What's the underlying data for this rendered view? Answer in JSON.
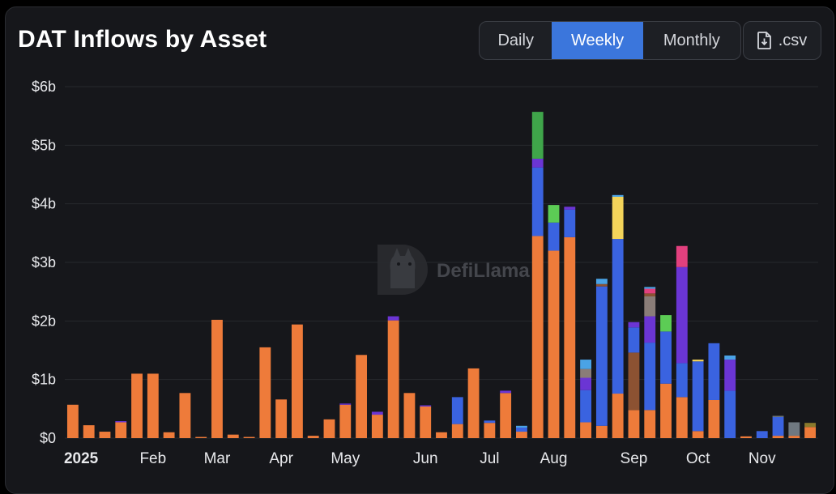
{
  "header": {
    "title": "DAT Inflows by Asset",
    "csv_label": ".csv",
    "icons": {
      "csv": "file-download-icon",
      "watermark": "llama-logo-icon"
    }
  },
  "toggle": {
    "options": [
      {
        "label": "Daily",
        "active": false
      },
      {
        "label": "Weekly",
        "active": true
      },
      {
        "label": "Monthly",
        "active": false
      }
    ]
  },
  "watermark": {
    "text": "DefiLlama"
  },
  "chart_data": {
    "type": "bar",
    "stacked": true,
    "title": "DAT Inflows by Asset",
    "xlabel": "",
    "ylabel": "",
    "ylim": [
      0,
      6
    ],
    "y_unit": "billion USD",
    "y_ticks": [
      "$0",
      "$1b",
      "$2b",
      "$3b",
      "$4b",
      "$5b",
      "$6b"
    ],
    "x_ticks": [
      {
        "label": "2025",
        "index": 0,
        "bold": true
      },
      {
        "label": "Feb",
        "index": 5
      },
      {
        "label": "Mar",
        "index": 9
      },
      {
        "label": "Apr",
        "index": 13
      },
      {
        "label": "May",
        "index": 17
      },
      {
        "label": "Jun",
        "index": 22
      },
      {
        "label": "Jul",
        "index": 26
      },
      {
        "label": "Aug",
        "index": 30
      },
      {
        "label": "Sep",
        "index": 35
      },
      {
        "label": "Oct",
        "index": 39
      },
      {
        "label": "Nov",
        "index": 43
      }
    ],
    "grid": true,
    "legend": "none",
    "colors": {
      "orange": "#ee7b3a",
      "blue": "#3a63e0",
      "purple": "#6b35d4",
      "green": "#3fa54a",
      "yellow": "#f3d45a",
      "brown": "#8c5232",
      "gray": "#8a7d78",
      "pink": "#e2407e",
      "lightblue": "#4aa3e6",
      "lightgreen": "#5ccc55",
      "slate": "#6f7880",
      "olive": "#8a7a2c"
    },
    "weeks": [
      [
        [
          "orange",
          0.57
        ]
      ],
      [
        [
          "orange",
          0.22
        ]
      ],
      [
        [
          "orange",
          0.11
        ]
      ],
      [
        [
          "orange",
          0.27
        ],
        [
          "purple",
          0.02
        ]
      ],
      [
        [
          "orange",
          1.1
        ]
      ],
      [
        [
          "orange",
          1.1
        ]
      ],
      [
        [
          "orange",
          0.1
        ]
      ],
      [
        [
          "orange",
          0.77
        ]
      ],
      [
        [
          "orange",
          0.02
        ]
      ],
      [
        [
          "orange",
          2.02
        ]
      ],
      [
        [
          "orange",
          0.06
        ]
      ],
      [
        [
          "orange",
          0.02
        ]
      ],
      [
        [
          "orange",
          1.55
        ]
      ],
      [
        [
          "orange",
          0.66
        ]
      ],
      [
        [
          "orange",
          1.94
        ]
      ],
      [
        [
          "orange",
          0.04
        ]
      ],
      [
        [
          "orange",
          0.32
        ]
      ],
      [
        [
          "orange",
          0.57
        ],
        [
          "purple",
          0.02
        ]
      ],
      [
        [
          "orange",
          1.42
        ]
      ],
      [
        [
          "orange",
          0.4
        ],
        [
          "purple",
          0.05
        ]
      ],
      [
        [
          "orange",
          2.01
        ],
        [
          "purple",
          0.07
        ]
      ],
      [
        [
          "orange",
          0.77
        ]
      ],
      [
        [
          "orange",
          0.54
        ],
        [
          "purple",
          0.02
        ]
      ],
      [
        [
          "orange",
          0.1
        ]
      ],
      [
        [
          "orange",
          0.24
        ],
        [
          "blue",
          0.46
        ]
      ],
      [
        [
          "orange",
          1.19
        ]
      ],
      [
        [
          "orange",
          0.26
        ],
        [
          "blue",
          0.04
        ]
      ],
      [
        [
          "orange",
          0.77
        ],
        [
          "purple",
          0.04
        ]
      ],
      [
        [
          "orange",
          0.11
        ],
        [
          "blue",
          0.07
        ],
        [
          "lightblue",
          0.03
        ]
      ],
      [
        [
          "orange",
          3.45
        ],
        [
          "blue",
          1.17
        ],
        [
          "purple",
          0.15
        ],
        [
          "green",
          0.8
        ]
      ],
      [
        [
          "orange",
          3.2
        ],
        [
          "blue",
          0.48
        ],
        [
          "lightgreen",
          0.3
        ]
      ],
      [
        [
          "orange",
          3.43
        ],
        [
          "blue",
          0.47
        ],
        [
          "purple",
          0.05
        ]
      ],
      [
        [
          "orange",
          0.27
        ],
        [
          "blue",
          0.55
        ],
        [
          "purple",
          0.21
        ],
        [
          "gray",
          0.15
        ],
        [
          "lightblue",
          0.16
        ]
      ],
      [
        [
          "orange",
          0.21
        ],
        [
          "blue",
          2.38
        ],
        [
          "brown",
          0.04
        ],
        [
          "lightblue",
          0.09
        ]
      ],
      [
        [
          "orange",
          0.76
        ],
        [
          "blue",
          2.64
        ],
        [
          "yellow",
          0.72
        ],
        [
          "lightblue",
          0.03
        ]
      ],
      [
        [
          "orange",
          0.48
        ],
        [
          "brown",
          0.98
        ],
        [
          "blue",
          0.43
        ],
        [
          "purple",
          0.09
        ]
      ],
      [
        [
          "orange",
          0.48
        ],
        [
          "blue",
          1.15
        ],
        [
          "purple",
          0.45
        ],
        [
          "gray",
          0.34
        ],
        [
          "brown",
          0.05
        ],
        [
          "pink",
          0.08
        ],
        [
          "lightblue",
          0.03
        ]
      ],
      [
        [
          "orange",
          0.93
        ],
        [
          "blue",
          0.89
        ],
        [
          "lightgreen",
          0.28
        ]
      ],
      [
        [
          "orange",
          0.7
        ],
        [
          "blue",
          0.58
        ],
        [
          "purple",
          1.64
        ],
        [
          "pink",
          0.36
        ]
      ],
      [
        [
          "orange",
          0.12
        ],
        [
          "blue",
          1.19
        ],
        [
          "yellow",
          0.03
        ]
      ],
      [
        [
          "orange",
          0.65
        ],
        [
          "blue",
          0.97
        ]
      ],
      [
        [
          "blue",
          0.81
        ],
        [
          "purple",
          0.53
        ],
        [
          "lightblue",
          0.07
        ]
      ],
      [
        [
          "orange",
          0.03
        ]
      ],
      [
        [
          "blue",
          0.12
        ]
      ],
      [
        [
          "orange",
          0.04
        ],
        [
          "blue",
          0.32
        ],
        [
          "slate",
          0.02
        ]
      ],
      [
        [
          "orange",
          0.04
        ],
        [
          "slate",
          0.23
        ]
      ],
      [
        [
          "orange",
          0.19
        ],
        [
          "olive",
          0.07
        ]
      ]
    ]
  }
}
